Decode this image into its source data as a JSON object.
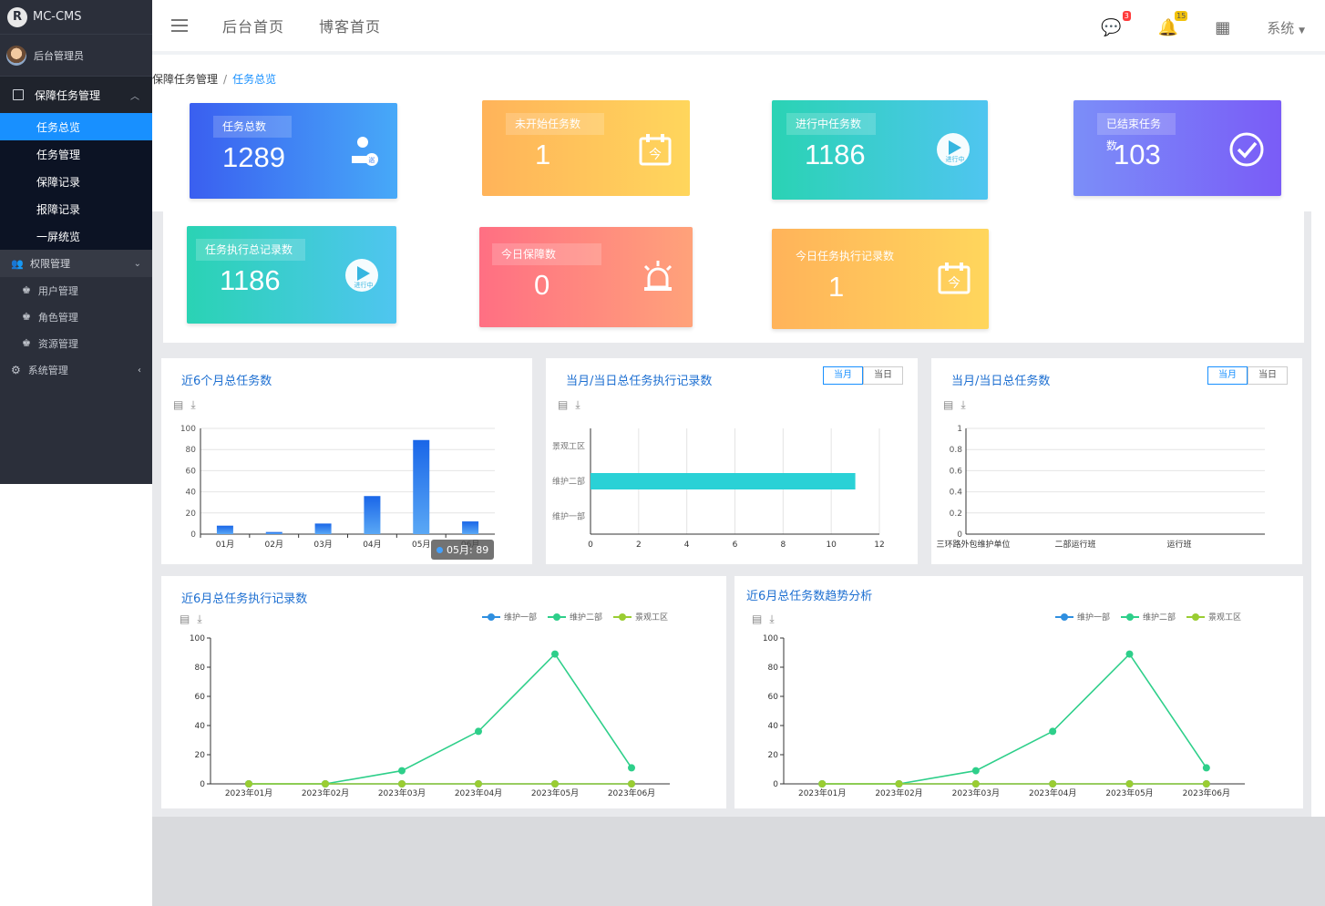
{
  "app": {
    "logo_text": "MC-CMS",
    "user_name": "后台管理员"
  },
  "sidebar": {
    "group_title": "保障任务管理",
    "items": [
      {
        "label": "任务总览",
        "active": true
      },
      {
        "label": "任务管理"
      },
      {
        "label": "保障记录"
      },
      {
        "label": "报障记录"
      },
      {
        "label": "一屏统览"
      }
    ],
    "perm_title": "权限管理",
    "perm_items": [
      {
        "label": "用户管理"
      },
      {
        "label": "角色管理"
      },
      {
        "label": "资源管理"
      }
    ],
    "system_title": "系统管理"
  },
  "topbar": {
    "nav1": "后台首页",
    "nav2": "博客首页",
    "msg_badge": "3",
    "bell_badge": "15",
    "system_label": "系统"
  },
  "breadcrumb": {
    "parent": "保障任务管理",
    "sep": "/",
    "current": "任务总览"
  },
  "cards": [
    {
      "label": "任务总数",
      "value": "1289",
      "icon": "inspector-icon"
    },
    {
      "label": "未开始任务数",
      "value": "1",
      "icon": "calendar-today-icon"
    },
    {
      "label": "进行中任务数",
      "value": "1186",
      "icon": "in-progress-icon"
    },
    {
      "label": "已结束任务数",
      "value": "103",
      "icon": "check-circle-icon"
    },
    {
      "label": "任务执行总记录数",
      "value": "1186",
      "icon": "in-progress-icon"
    },
    {
      "label": "今日保障数",
      "value": "0",
      "icon": "alarm-icon"
    },
    {
      "label": "今日任务执行记录数",
      "value": "1",
      "icon": "calendar-today-icon"
    }
  ],
  "icon_text": {
    "inspect": "巡",
    "today": "今",
    "progress": "进行中"
  },
  "colors": {
    "accent": "#1890ff",
    "sidebar_bg": "#2b2f3a",
    "series1": "#2f8fe0",
    "series2": "#2ecf8a",
    "series3": "#9acd32",
    "bar_teal": "#2ad1d6"
  },
  "panels": {
    "p1_title": "近6个月总任务数",
    "p2_title": "当月/当日总任务执行记录数",
    "p3_title": "当月/当日总任务数",
    "p4_title": "近6月总任务执行记录数",
    "p5_title": "近6月总任务数趋势分析",
    "toggle_month": "当月",
    "toggle_day": "当日",
    "tooltip": "05月: 89"
  },
  "chart_data": [
    {
      "type": "bar",
      "title": "近6个月总任务数",
      "categories": [
        "01月",
        "02月",
        "03月",
        "04月",
        "05月",
        "06月"
      ],
      "values": [
        8,
        2,
        10,
        36,
        89,
        12
      ],
      "ylim": [
        0,
        100
      ],
      "yticks": [
        0,
        20,
        40,
        60,
        80,
        100
      ]
    },
    {
      "type": "bar",
      "orientation": "horizontal",
      "title": "当月/当日总任务执行记录数",
      "categories": [
        "维护一部",
        "维护二部",
        "景观工区"
      ],
      "values": [
        0,
        11,
        0
      ],
      "xlim": [
        0,
        12
      ],
      "xticks": [
        0,
        2,
        4,
        6,
        8,
        10,
        12
      ]
    },
    {
      "type": "bar",
      "title": "当月/当日总任务数",
      "categories": [
        "三环路外包维护单位",
        "二部运行班",
        "运行班"
      ],
      "values": [
        0,
        0,
        0
      ],
      "ylim": [
        0,
        1
      ],
      "yticks": [
        "0",
        "0.2",
        "0.4",
        "0.6",
        "0.8",
        "1"
      ]
    },
    {
      "type": "line",
      "title": "近6月总任务执行记录数",
      "x": [
        "2023年01月",
        "2023年02月",
        "2023年03月",
        "2023年04月",
        "2023年05月",
        "2023年06月"
      ],
      "series": [
        {
          "name": "维护一部",
          "values": [
            0,
            0,
            0,
            0,
            0,
            0
          ]
        },
        {
          "name": "维护二部",
          "values": [
            0,
            0,
            9,
            36,
            89,
            11
          ]
        },
        {
          "name": "景观工区",
          "values": [
            0,
            0,
            0,
            0,
            0,
            0
          ]
        }
      ],
      "ylim": [
        0,
        100
      ],
      "yticks": [
        0,
        20,
        40,
        60,
        80,
        100
      ]
    },
    {
      "type": "line",
      "title": "近6月总任务数趋势分析",
      "x": [
        "2023年01月",
        "2023年02月",
        "2023年03月",
        "2023年04月",
        "2023年05月",
        "2023年06月"
      ],
      "series": [
        {
          "name": "维护一部",
          "values": [
            0,
            0,
            0,
            0,
            0,
            0
          ]
        },
        {
          "name": "维护二部",
          "values": [
            0,
            0,
            9,
            36,
            89,
            11
          ]
        },
        {
          "name": "景观工区",
          "values": [
            0,
            0,
            0,
            0,
            0,
            0
          ]
        }
      ],
      "ylim": [
        0,
        100
      ],
      "yticks": [
        0,
        20,
        40,
        60,
        80,
        100
      ]
    }
  ]
}
